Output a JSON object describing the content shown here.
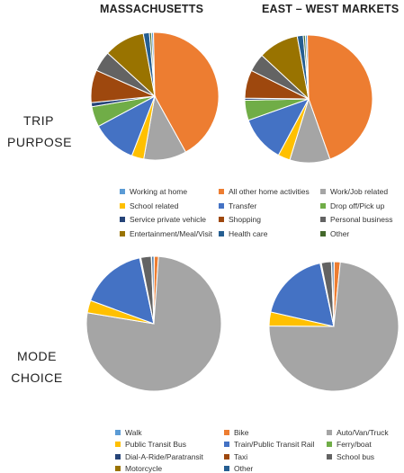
{
  "columns": [
    "MASSACHUSETTS",
    "EAST – WEST MARKETS"
  ],
  "chart_data": [
    {
      "type": "pie",
      "row_label": [
        "TRIP",
        "PURPOSE"
      ],
      "legend": [
        {
          "name": "Working at home",
          "color": "#5b9bd5"
        },
        {
          "name": "All other home activities",
          "color": "#ed7d31"
        },
        {
          "name": "Work/Job related",
          "color": "#a5a5a5"
        },
        {
          "name": "School related",
          "color": "#ffc000"
        },
        {
          "name": "Transfer",
          "color": "#4472c4"
        },
        {
          "name": "Drop off/Pick up",
          "color": "#70ad47"
        },
        {
          "name": "Service private vehicle",
          "color": "#264478"
        },
        {
          "name": "Shopping",
          "color": "#9e480e"
        },
        {
          "name": "Personal business",
          "color": "#636363"
        },
        {
          "name": "Entertainment/Meal/Visit",
          "color": "#997300"
        },
        {
          "name": "Health care",
          "color": "#255e91"
        },
        {
          "name": "Other",
          "color": "#43682b"
        }
      ],
      "series": [
        {
          "name": "MASSACHUSETTS",
          "values": [
            0.5,
            41,
            10.5,
            3,
            11,
            5,
            1,
            8,
            5,
            10,
            1.5,
            0.5
          ]
        },
        {
          "name": "EAST – WEST MARKETS",
          "values": [
            0.5,
            44,
            10,
            3,
            11.5,
            5,
            0.5,
            7,
            4.5,
            10,
            1.5,
            0.5
          ]
        }
      ]
    },
    {
      "type": "pie",
      "row_label": [
        "MODE",
        "CHOICE"
      ],
      "legend": [
        {
          "name": "Walk",
          "color": "#5b9bd5"
        },
        {
          "name": "Bike",
          "color": "#ed7d31"
        },
        {
          "name": "Auto/Van/Truck",
          "color": "#a5a5a5"
        },
        {
          "name": "Public Transit Bus",
          "color": "#ffc000"
        },
        {
          "name": "Train/Public Transit Rail",
          "color": "#4472c4"
        },
        {
          "name": "Ferry/boat",
          "color": "#70ad47"
        },
        {
          "name": "Dial-A-Ride/Paratransit",
          "color": "#264478"
        },
        {
          "name": "Taxi",
          "color": "#9e480e"
        },
        {
          "name": "School bus",
          "color": "#636363"
        },
        {
          "name": "Motorcycle",
          "color": "#997300"
        },
        {
          "name": "Other",
          "color": "#255e91"
        }
      ],
      "series": [
        {
          "name": "MASSACHUSETTS",
          "values": [
            0.1,
            1,
            76.5,
            3,
            16,
            0.1,
            0.1,
            0.1,
            2.5,
            0.1,
            0.5
          ]
        },
        {
          "name": "EAST – WEST MARKETS",
          "values": [
            0.1,
            1.5,
            73.5,
            3.5,
            18,
            0.1,
            0.1,
            0.1,
            2.5,
            0.1,
            0.5
          ]
        }
      ]
    }
  ]
}
